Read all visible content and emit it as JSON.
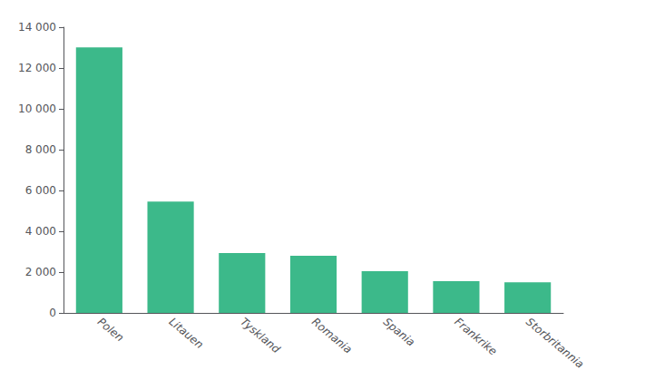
{
  "chart_data": {
    "type": "bar",
    "categories": [
      "Polen",
      "Litauen",
      "Tyskland",
      "Romania",
      "Spania",
      "Frankrike",
      "Storbritannia"
    ],
    "values": [
      13011,
      5457,
      2928,
      2801,
      2048,
      1552,
      1497
    ],
    "color": "#3CB98A",
    "ylim": [
      0,
      14000
    ],
    "yticks": [
      0,
      {
        "value": 2000,
        "label": "2 000"
      },
      {
        "value": 4000,
        "label": "4 000"
      },
      {
        "value": 6000,
        "label": "6 000"
      },
      {
        "value": 8000,
        "label": "8 000"
      },
      {
        "value": 10000,
        "label": "10 000"
      },
      {
        "value": 12000,
        "label": "12 000"
      },
      {
        "value": 14000,
        "label": "14 000"
      }
    ],
    "grid": false
  }
}
